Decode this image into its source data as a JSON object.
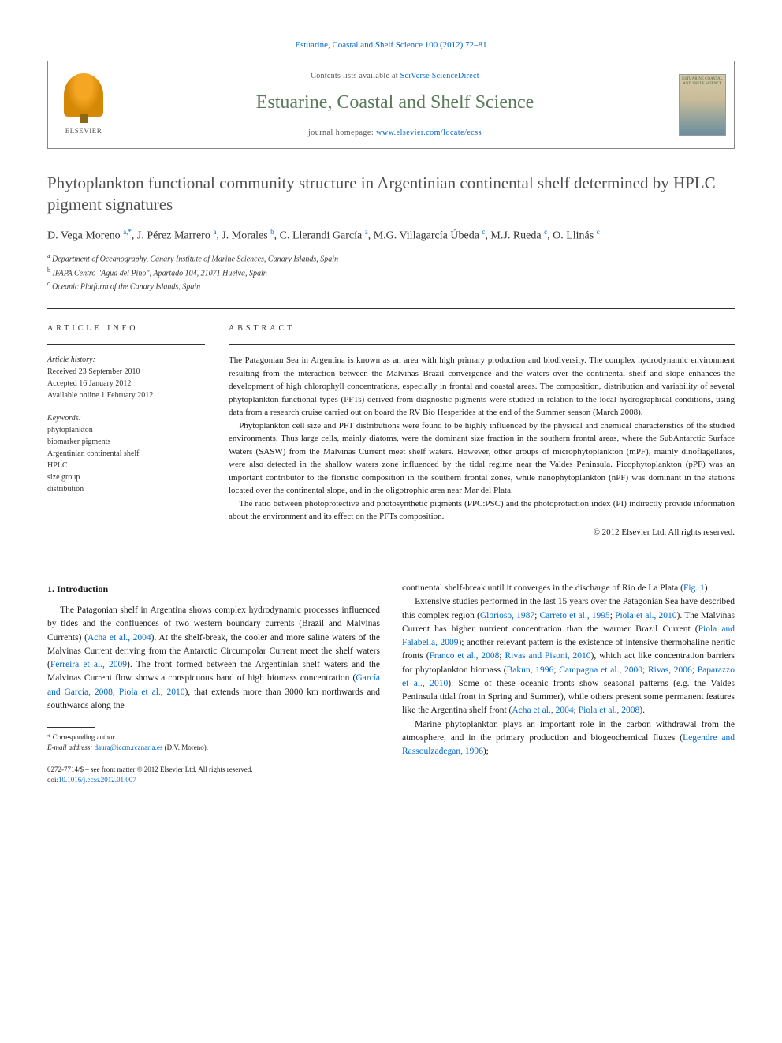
{
  "journal_ref": "Estuarine, Coastal and Shelf Science 100 (2012) 72–81",
  "header": {
    "contents_prefix": "Contents lists available at ",
    "contents_link": "SciVerse ScienceDirect",
    "journal_name": "Estuarine, Coastal and Shelf Science",
    "homepage_prefix": "journal homepage: ",
    "homepage_url": "www.elsevier.com/locate/ecss",
    "elsevier_label": "ELSEVIER",
    "cover_text": "ESTUARINE COASTAL AND SHELF SCIENCE",
    "cover_colors": {
      "top": "#d4c9a8",
      "bottom": "#6b8e9e"
    }
  },
  "title": "Phytoplankton functional community structure in Argentinian continental shelf determined by HPLC pigment signatures",
  "authors_html": "D. Vega Moreno <sup>a,*</sup>, J. Pérez Marrero <sup>a</sup>, J. Morales <sup>b</sup>, C. Llerandi García <sup>a</sup>, M.G. Villagarcía Úbeda <sup>c</sup>, M.J. Rueda <sup>c</sup>, O. Llinás <sup>c</sup>",
  "affiliations": [
    "<sup>a</sup> Department of Oceanography, Canary Institute of Marine Sciences, Canary Islands, Spain",
    "<sup>b</sup> IFAPA Centro \"Agua del Pino\", Apartado 104, 21071 Huelva, Spain",
    "<sup>c</sup> Oceanic Platform of the Canary Islands, Spain"
  ],
  "article_info": {
    "label": "ARTICLE INFO",
    "history_hdr": "Article history:",
    "history": [
      "Received 23 September 2010",
      "Accepted 16 January 2012",
      "Available online 1 February 2012"
    ],
    "keywords_hdr": "Keywords:",
    "keywords": [
      "phytoplankton",
      "biomarker pigments",
      "Argentinian continental shelf",
      "HPLC",
      "size group",
      "distribution"
    ]
  },
  "abstract": {
    "label": "ABSTRACT",
    "paragraphs": [
      "The Patagonian Sea in Argentina is known as an area with high primary production and biodiversity. The complex hydrodynamic environment resulting from the interaction between the Malvinas–Brazil convergence and the waters over the continental shelf and slope enhances the development of high chlorophyll concentrations, especially in frontal and coastal areas. The composition, distribution and variability of several phytoplankton functional types (PFTs) derived from diagnostic pigments were studied in relation to the local hydrographical conditions, using data from a research cruise carried out on board the RV Bio Hesperides at the end of the Summer season (March 2008).",
      "Phytoplankton cell size and PFT distributions were found to be highly influenced by the physical and chemical characteristics of the studied environments. Thus large cells, mainly diatoms, were the dominant size fraction in the southern frontal areas, where the SubAntarctic Surface Waters (SASW) from the Malvinas Current meet shelf waters. However, other groups of microphytoplankton (mPF), mainly dinoflagellates, were also detected in the shallow waters zone influenced by the tidal regime near the Valdes Peninsula. Picophytoplankton (pPF) was an important contributor to the floristic composition in the southern frontal zones, while nanophytoplankton (nPF) was dominant in the stations located over the continental slope, and in the oligotrophic area near Mar del Plata.",
      "The ratio between photoprotective and photosynthetic pigments (PPC:PSC) and the photoprotection index (PI) indirectly provide information about the environment and its effect on the PFTs composition."
    ],
    "copyright": "© 2012 Elsevier Ltd. All rights reserved."
  },
  "body": {
    "section_heading": "1. Introduction",
    "left_col_html": "The Patagonian shelf in Argentina shows complex hydrodynamic processes influenced by tides and the confluences of two western boundary currents (Brazil and Malvinas Currents) (<span class=\"cite\">Acha et al., 2004</span>). At the shelf-break, the cooler and more saline waters of the Malvinas Current deriving from the Antarctic Circumpolar Current meet the shelf waters (<span class=\"cite\">Ferreira et al., 2009</span>). The front formed between the Argentinian shelf waters and the Malvinas Current flow shows a conspicuous band of high biomass concentration (<span class=\"cite\">García and García, 2008</span>; <span class=\"cite\">Piola et al., 2010</span>), that extends more than 3000 km northwards and southwards along the",
    "right_col_paras": [
      "continental shelf-break until it converges in the discharge of Rio de La Plata (<span class=\"cite\">Fig. 1</span>).",
      "Extensive studies performed in the last 15 years over the Patagonian Sea have described this complex region (<span class=\"cite\">Glorioso, 1987</span>; <span class=\"cite\">Carreto et al., 1995</span>; <span class=\"cite\">Piola et al., 2010</span>). The Malvinas Current has higher nutrient concentration than the warmer Brazil Current (<span class=\"cite\">Piola and Falabella, 2009</span>); another relevant pattern is the existence of intensive thermohaline neritic fronts (<span class=\"cite\">Franco et al., 2008</span>; <span class=\"cite\">Rivas and Pisoni, 2010</span>), which act like concentration barriers for phytoplankton biomass (<span class=\"cite\">Bakun, 1996</span>; <span class=\"cite\">Campagna et al., 2000</span>; <span class=\"cite\">Rivas, 2006</span>; <span class=\"cite\">Paparazzo et al., 2010</span>). Some of these oceanic fronts show seasonal patterns (e.g. the Valdes Peninsula tidal front in Spring and Summer), while others present some permanent features like the Argentina shelf front (<span class=\"cite\">Acha et al., 2004</span>; <span class=\"cite\">Piola et al., 2008</span>).",
      "Marine phytoplankton plays an important role in the carbon withdrawal from the atmosphere, and in the primary production and biogeochemical fluxes (<span class=\"cite\">Legendre and Rassoulzadegan, 1996</span>);"
    ]
  },
  "footnote": {
    "corresponding": "* Corresponding author.",
    "email_label": "E-mail address:",
    "email": "daura@iccm.rcanaria.es",
    "email_person": "(D.V. Moreno)."
  },
  "doi_block": {
    "front_matter": "0272-7714/$ – see front matter © 2012 Elsevier Ltd. All rights reserved.",
    "doi_label": "doi:",
    "doi": "10.1016/j.ecss.2012.01.007"
  },
  "colors": {
    "link": "#0066cc",
    "journal_green": "#5a7a5a",
    "title_gray": "#505050",
    "text": "#1a1a1a",
    "border": "#333333"
  },
  "typography": {
    "body_pt": 11.5,
    "title_pt": 21,
    "journal_name_pt": 24,
    "abstract_pt": 11,
    "info_pt": 10,
    "footnote_pt": 9
  }
}
